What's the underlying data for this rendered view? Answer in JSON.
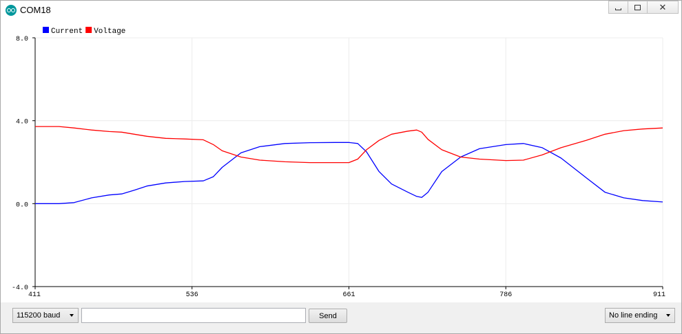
{
  "window": {
    "title": "COM18"
  },
  "chart_data": {
    "type": "line",
    "xlim": [
      411,
      911
    ],
    "ylim": [
      -4.0,
      8.0
    ],
    "x_ticks": [
      "411",
      "536",
      "661",
      "786",
      "911"
    ],
    "y_ticks": [
      "8.0",
      "4.0",
      "0.0",
      "-4.0"
    ],
    "grid": true,
    "legend_position": "top-left",
    "series": [
      {
        "name": "Current",
        "color": "#0000ff",
        "x": [
          411,
          430,
          442,
          456,
          470,
          480,
          490,
          500,
          515,
          530,
          545,
          553,
          560,
          575,
          590,
          610,
          630,
          650,
          661,
          668,
          675,
          685,
          695,
          708,
          715,
          719,
          724,
          735,
          750,
          765,
          786,
          800,
          815,
          830,
          850,
          865,
          880,
          895,
          911
        ],
        "y": [
          0.0,
          0.0,
          0.05,
          0.28,
          0.42,
          0.47,
          0.65,
          0.85,
          1.0,
          1.07,
          1.1,
          1.3,
          1.75,
          2.45,
          2.75,
          2.9,
          2.94,
          2.95,
          2.95,
          2.9,
          2.5,
          1.55,
          0.95,
          0.55,
          0.35,
          0.3,
          0.55,
          1.55,
          2.25,
          2.65,
          2.85,
          2.9,
          2.7,
          2.2,
          1.25,
          0.55,
          0.28,
          0.15,
          0.08
        ]
      },
      {
        "name": "Voltage",
        "color": "#ff0000",
        "x": [
          411,
          430,
          442,
          456,
          470,
          480,
          490,
          500,
          515,
          530,
          545,
          553,
          560,
          575,
          590,
          610,
          630,
          650,
          661,
          668,
          675,
          685,
          695,
          708,
          715,
          719,
          724,
          735,
          750,
          765,
          786,
          800,
          815,
          830,
          850,
          865,
          880,
          895,
          911
        ],
        "y": [
          3.72,
          3.72,
          3.65,
          3.55,
          3.48,
          3.45,
          3.35,
          3.25,
          3.15,
          3.12,
          3.08,
          2.85,
          2.55,
          2.25,
          2.1,
          2.02,
          1.98,
          1.98,
          1.98,
          2.15,
          2.6,
          3.05,
          3.35,
          3.5,
          3.55,
          3.45,
          3.1,
          2.6,
          2.25,
          2.15,
          2.08,
          2.1,
          2.35,
          2.7,
          3.05,
          3.35,
          3.52,
          3.6,
          3.65
        ]
      }
    ]
  },
  "controls": {
    "baud": "115200 baud",
    "message_value": "",
    "send": "Send",
    "line_ending": "No line ending"
  }
}
